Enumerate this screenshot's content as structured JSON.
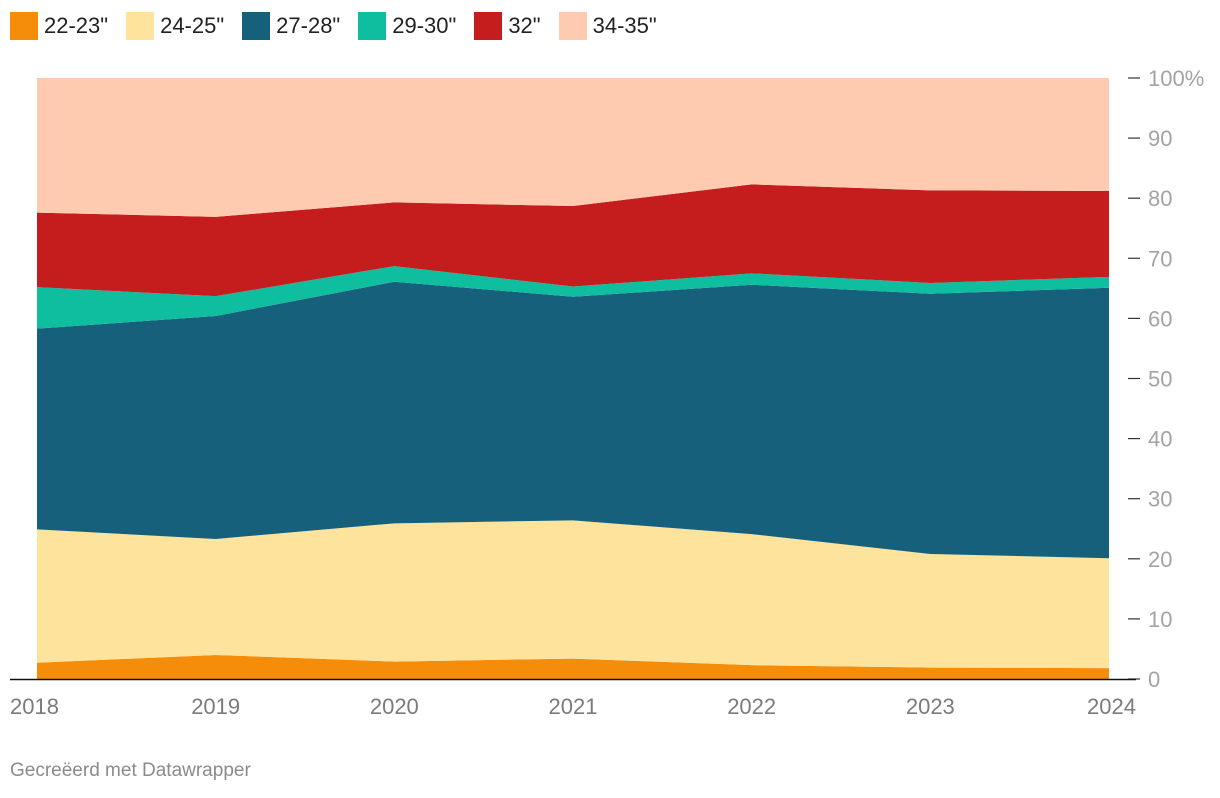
{
  "chart_data": {
    "type": "area",
    "stacked": true,
    "normalized": true,
    "x": [
      "2018",
      "2019",
      "2020",
      "2021",
      "2022",
      "2023",
      "2024"
    ],
    "series": [
      {
        "name": "22-23\"",
        "color": "#f58d0a",
        "values": [
          2.7,
          4.0,
          2.9,
          3.4,
          2.3,
          1.9,
          1.8
        ]
      },
      {
        "name": "24-25\"",
        "color": "#fde39c",
        "values": [
          22.2,
          19.3,
          23.0,
          23.0,
          21.8,
          18.9,
          18.3
        ]
      },
      {
        "name": "27-28\"",
        "color": "#17607b",
        "values": [
          33.4,
          37.1,
          40.2,
          37.2,
          41.5,
          43.3,
          45.0
        ]
      },
      {
        "name": "29-30\"",
        "color": "#0fbd9f",
        "values": [
          6.9,
          3.3,
          2.6,
          1.7,
          1.9,
          1.8,
          1.8
        ]
      },
      {
        "name": "32\"",
        "color": "#c51d1e",
        "values": [
          12.4,
          13.2,
          10.6,
          13.4,
          14.8,
          15.4,
          14.3
        ]
      },
      {
        "name": "34-35\"",
        "color": "#fecbb0",
        "values": [
          22.4,
          23.1,
          20.7,
          21.3,
          17.7,
          18.7,
          18.8
        ]
      }
    ],
    "y_ticks": [
      "0",
      "10",
      "20",
      "30",
      "40",
      "50",
      "60",
      "70",
      "80",
      "90",
      "100%"
    ],
    "ylim": [
      0,
      100
    ],
    "legend_position": "top-left",
    "title": "",
    "xlabel": "",
    "ylabel": ""
  },
  "credit": "Gecreëerd met Datawrapper"
}
